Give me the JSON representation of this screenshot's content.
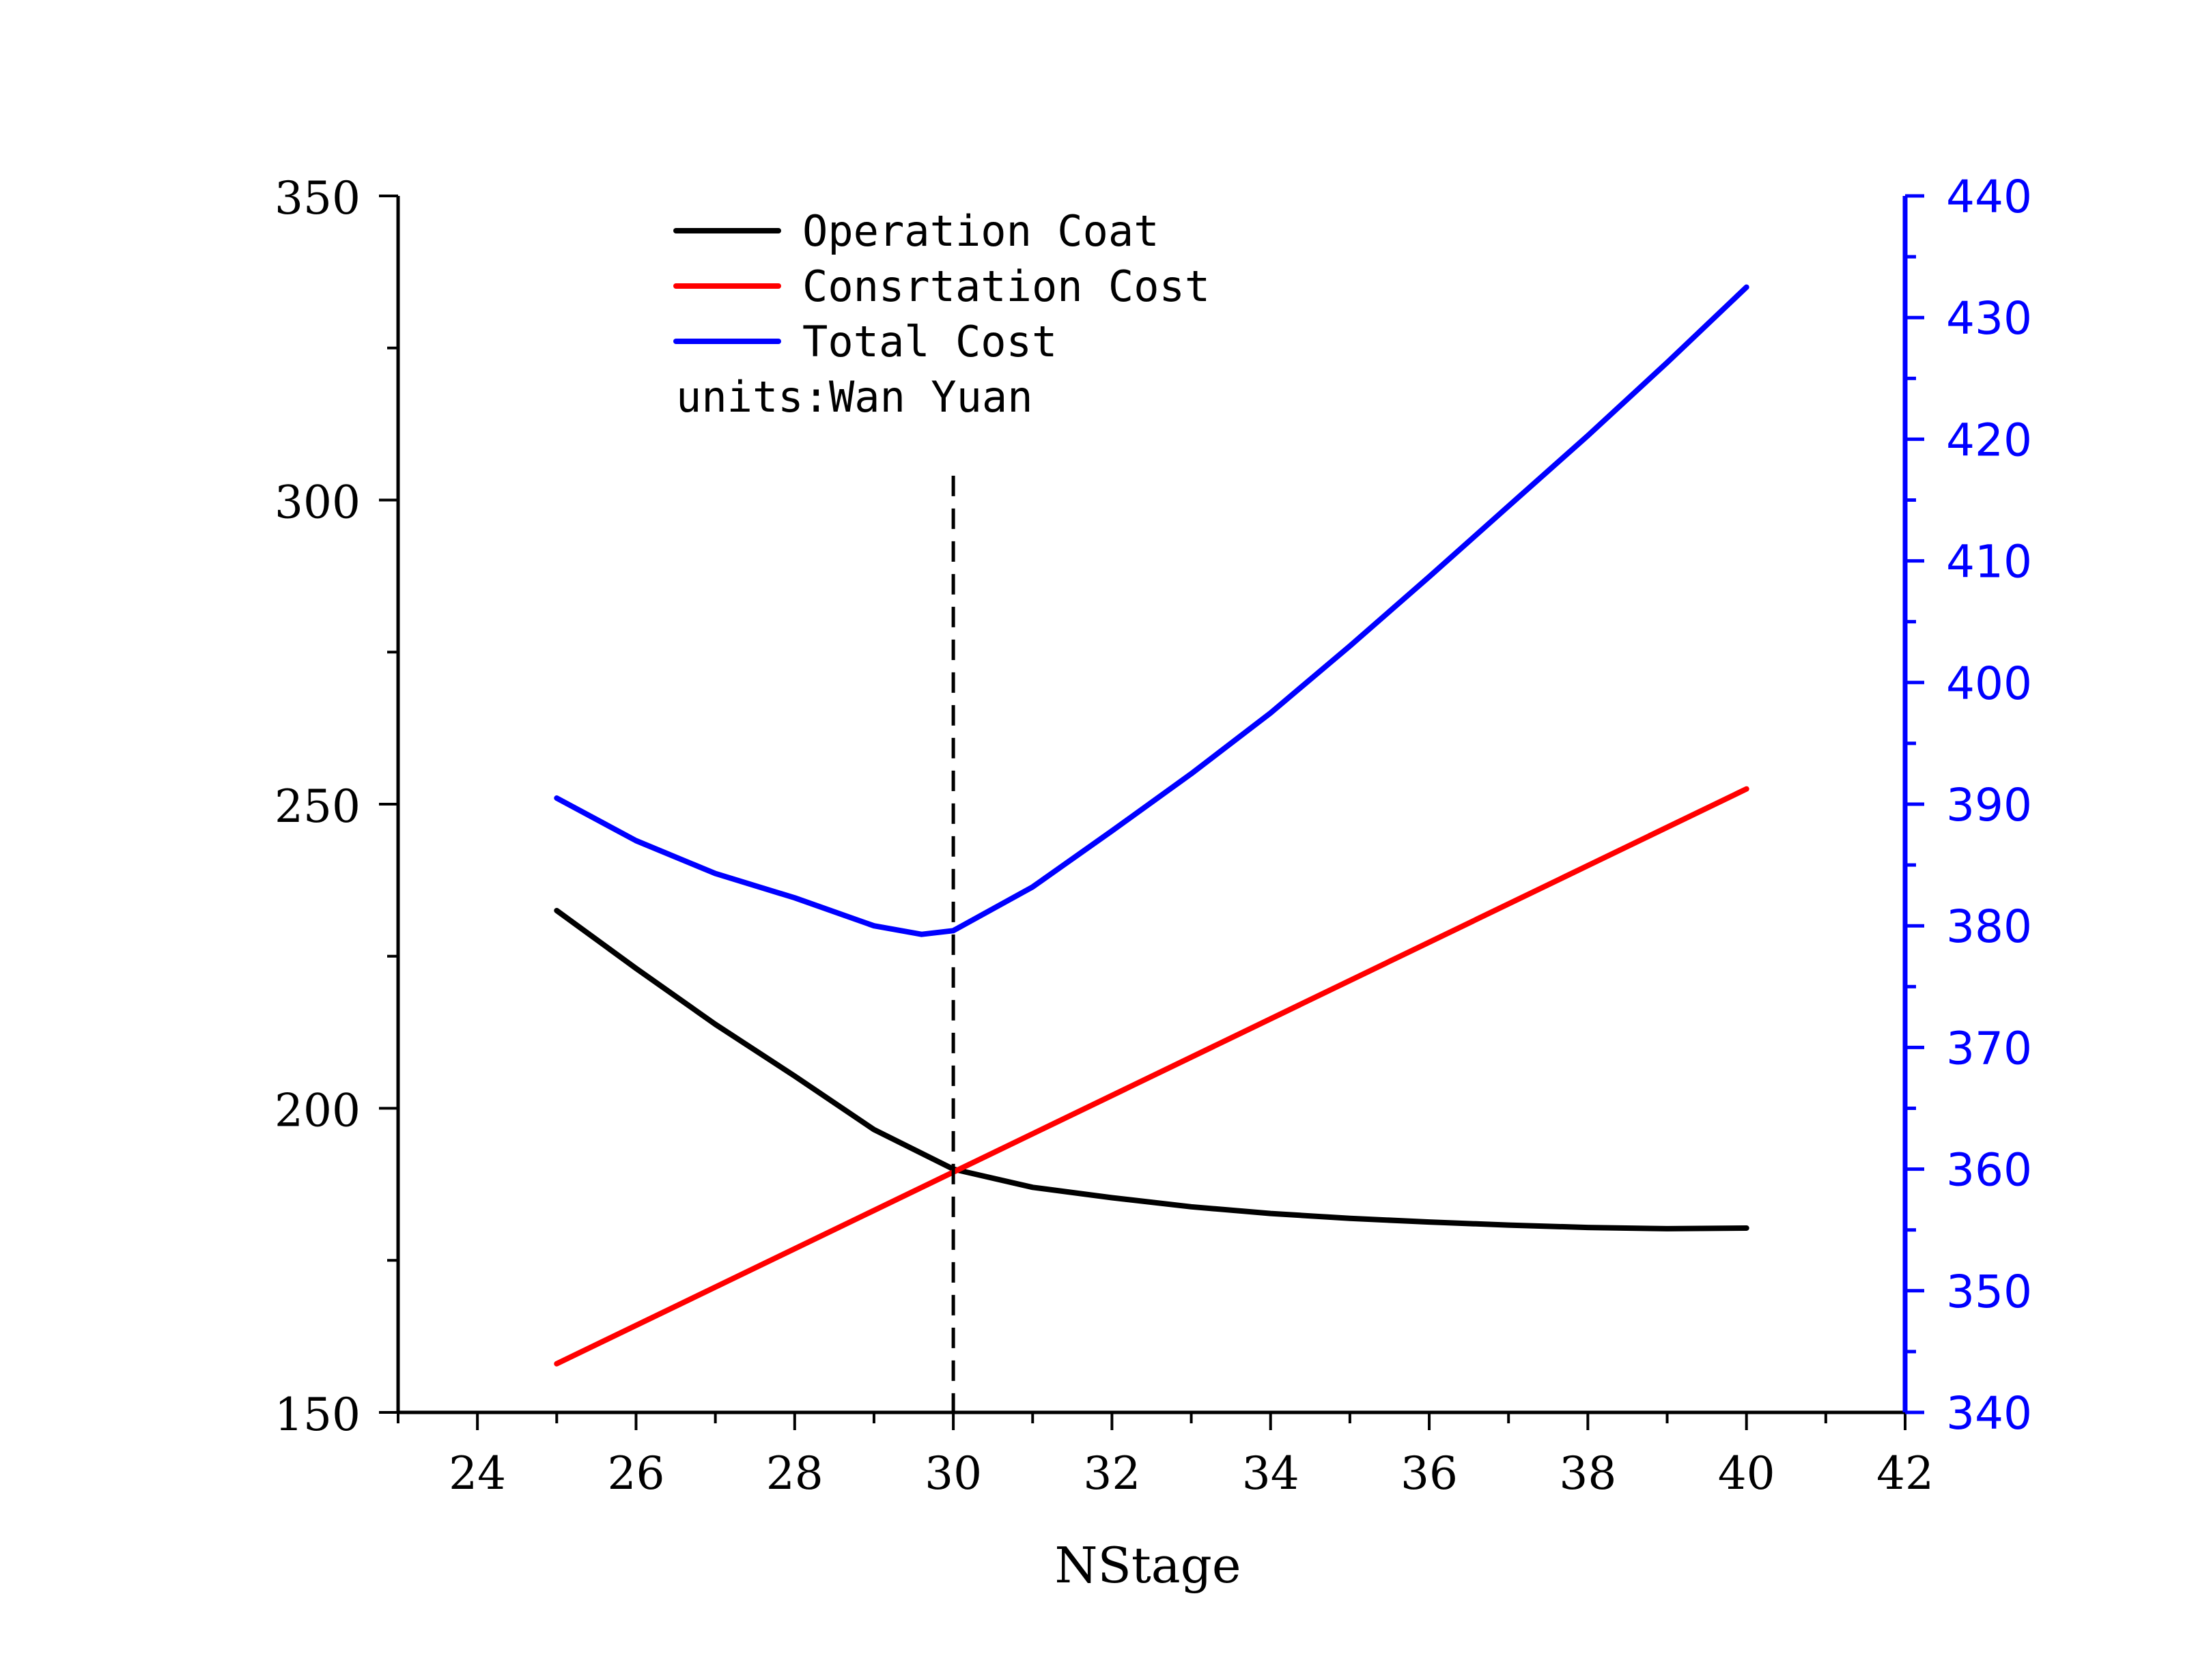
{
  "chart_data": {
    "type": "line",
    "xlabel": "NStage",
    "x_axis": {
      "range": [
        23,
        42
      ],
      "major_ticks": [
        24,
        26,
        28,
        30,
        32,
        34,
        36,
        38,
        40,
        42
      ],
      "tick_labels": [
        "24",
        "26",
        "28",
        "30",
        "32",
        "34",
        "36",
        "38",
        "40",
        "42"
      ]
    },
    "y_left": {
      "range": [
        150,
        350
      ],
      "major_ticks": [
        150,
        200,
        250,
        300,
        350
      ],
      "tick_labels": [
        "150",
        "200",
        "250",
        "300",
        "350"
      ],
      "color": "#000000"
    },
    "y_right": {
      "range": [
        340,
        440
      ],
      "major_ticks": [
        340,
        350,
        360,
        370,
        380,
        390,
        400,
        410,
        420,
        430,
        440
      ],
      "tick_labels": [
        "340",
        "350",
        "360",
        "370",
        "380",
        "390",
        "400",
        "410",
        "420",
        "430",
        "440"
      ],
      "color": "#0000ff"
    },
    "series": [
      {
        "name": "Operation Coat",
        "axis": "left",
        "color": "#000000",
        "x": [
          25,
          26,
          27,
          28,
          29,
          30,
          31,
          32,
          33,
          34,
          35,
          36,
          37,
          38,
          39,
          40
        ],
        "values": [
          232.5,
          223.0,
          213.8,
          205.3,
          196.5,
          190.0,
          187.0,
          185.3,
          183.8,
          182.7,
          181.9,
          181.3,
          180.8,
          180.4,
          180.2,
          180.3
        ]
      },
      {
        "name": "Consrtation Cost",
        "axis": "left",
        "color": "#ff0000",
        "x": [
          25,
          40
        ],
        "values": [
          158,
          252.5
        ]
      },
      {
        "name": "Total Cost",
        "axis": "right",
        "color": "#0000ff",
        "x": [
          25,
          26,
          27,
          28,
          29,
          29.6,
          30,
          31,
          32,
          33,
          34,
          35,
          36,
          37,
          38,
          39,
          40
        ],
        "values": [
          390.5,
          387.0,
          384.3,
          382.3,
          380.0,
          379.3,
          379.6,
          383.2,
          387.8,
          392.5,
          397.5,
          403.0,
          408.7,
          414.5,
          420.3,
          426.3,
          432.5
        ]
      }
    ],
    "reference_line": {
      "x": 30,
      "y_top": 304,
      "style": "dashed",
      "color": "#000000"
    },
    "legend": {
      "placement": "top-left",
      "items": [
        "Operation Coat",
        "Consrtation Cost",
        "Total Cost"
      ],
      "note": "units:Wan Yuan"
    }
  }
}
